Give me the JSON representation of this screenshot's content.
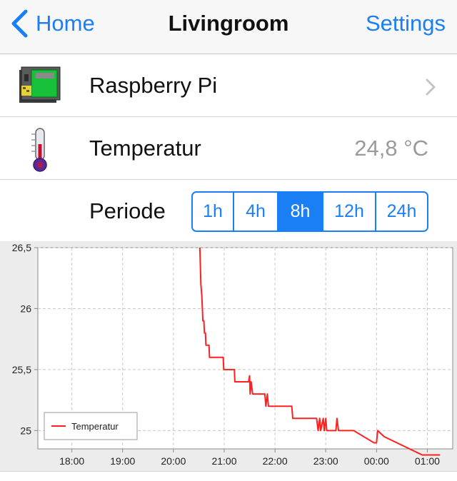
{
  "navbar": {
    "back_label": "Home",
    "title": "Livingroom",
    "settings_label": "Settings",
    "accent": "#1a7ff5"
  },
  "rows": {
    "device": {
      "label": "Raspberry Pi",
      "icon": "raspberry-pi-icon"
    },
    "temperature": {
      "label": "Temperatur",
      "value": "24,8 °C",
      "icon": "thermometer-icon"
    },
    "period": {
      "label": "Periode",
      "options": [
        "1h",
        "4h",
        "8h",
        "12h",
        "24h"
      ],
      "selected": "8h"
    }
  },
  "chart_data": {
    "type": "line",
    "title": "",
    "xlabel": "",
    "ylabel": "",
    "xlim": [
      17.33,
      25.5
    ],
    "ylim": [
      24.85,
      26.5
    ],
    "yticks": [
      {
        "value": 25,
        "label": "25"
      },
      {
        "value": 25.5,
        "label": "25,5"
      },
      {
        "value": 26,
        "label": "26"
      },
      {
        "value": 26.5,
        "label": "26,5"
      }
    ],
    "xticks": [
      {
        "value": 18,
        "label": "18:00"
      },
      {
        "value": 19,
        "label": "19:00"
      },
      {
        "value": 20,
        "label": "20:00"
      },
      {
        "value": 21,
        "label": "21:00"
      },
      {
        "value": 22,
        "label": "22:00"
      },
      {
        "value": 23,
        "label": "23:00"
      },
      {
        "value": 24,
        "label": "00:00"
      },
      {
        "value": 25,
        "label": "01:00"
      }
    ],
    "grid": true,
    "legend": "bottom-left",
    "series": [
      {
        "name": "Temperatur",
        "color": "#ff2020",
        "points": [
          [
            20.52,
            26.5
          ],
          [
            20.54,
            26.2
          ],
          [
            20.56,
            26.1
          ],
          [
            20.57,
            26.0
          ],
          [
            20.58,
            25.9
          ],
          [
            20.6,
            25.9
          ],
          [
            20.61,
            25.8
          ],
          [
            20.63,
            25.8
          ],
          [
            20.64,
            25.7
          ],
          [
            20.7,
            25.7
          ],
          [
            20.71,
            25.6
          ],
          [
            20.98,
            25.6
          ],
          [
            20.99,
            25.5
          ],
          [
            21.2,
            25.5
          ],
          [
            21.21,
            25.4
          ],
          [
            21.48,
            25.4
          ],
          [
            21.5,
            25.45
          ],
          [
            21.51,
            25.3
          ],
          [
            21.53,
            25.4
          ],
          [
            21.56,
            25.3
          ],
          [
            21.8,
            25.3
          ],
          [
            21.82,
            25.2
          ],
          [
            21.85,
            25.3
          ],
          [
            21.87,
            25.2
          ],
          [
            22.33,
            25.2
          ],
          [
            22.35,
            25.1
          ],
          [
            22.82,
            25.1
          ],
          [
            22.85,
            25.0
          ],
          [
            22.88,
            25.1
          ],
          [
            22.9,
            25.0
          ],
          [
            22.95,
            25.1
          ],
          [
            22.97,
            25.0
          ],
          [
            23.0,
            25.1
          ],
          [
            23.02,
            25.0
          ],
          [
            23.2,
            25.0
          ],
          [
            23.22,
            25.1
          ],
          [
            23.25,
            25.0
          ],
          [
            23.55,
            25.0
          ],
          [
            23.95,
            24.9
          ],
          [
            24.0,
            24.9
          ],
          [
            24.02,
            25.0
          ],
          [
            24.15,
            24.95
          ],
          [
            24.9,
            24.8
          ],
          [
            25.25,
            24.8
          ]
        ]
      }
    ]
  }
}
